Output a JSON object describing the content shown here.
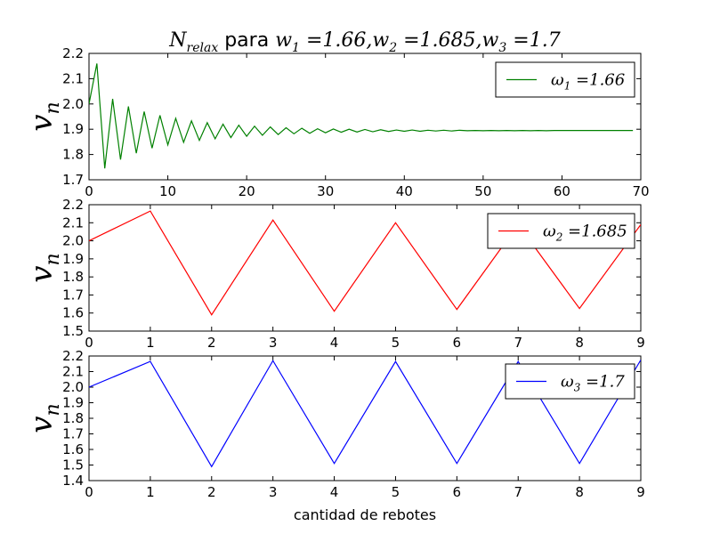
{
  "title_parts": {
    "n": "N",
    "n_sub": "relax",
    "para": " para ",
    "w1": "w",
    "w1_sub": "1",
    "w1_val": " =1.66,",
    "w2": "w",
    "w2_sub": "2",
    "w2_val": " =1.685,",
    "w3": "w",
    "w3_sub": "3",
    "w3_val": " =1.7"
  },
  "xlabel": "cantidad de rebotes",
  "chart_data": [
    {
      "type": "line",
      "ylabel": "v",
      "ylabel_sub": "n",
      "xlim": [
        0,
        70
      ],
      "ylim": [
        1.7,
        2.2
      ],
      "xticks": [
        "0",
        "10",
        "20",
        "30",
        "40",
        "50",
        "60",
        "70"
      ],
      "yticks": [
        "1.7",
        "1.8",
        "1.9",
        "2.0",
        "2.1",
        "2.2"
      ],
      "legend_position": "top-right",
      "series": [
        {
          "name": "ω",
          "name_sub": "1",
          "name_val": " =1.66",
          "color": "#008000",
          "x": [
            0,
            1,
            2,
            3,
            4,
            5,
            6,
            7,
            8,
            9,
            10,
            11,
            12,
            13,
            14,
            15,
            16,
            17,
            18,
            19,
            20,
            21,
            22,
            23,
            24,
            25,
            26,
            27,
            28,
            29,
            30,
            31,
            32,
            33,
            34,
            35,
            36,
            37,
            38,
            39,
            40,
            41,
            42,
            43,
            44,
            45,
            46,
            47,
            48,
            49,
            50,
            51,
            52,
            53,
            54,
            55,
            56,
            57,
            58,
            59,
            60,
            61,
            62,
            63,
            64,
            65,
            66,
            67,
            68,
            69
          ],
          "y": [
            2.0,
            2.16,
            1.745,
            2.02,
            1.78,
            1.99,
            1.805,
            1.97,
            1.825,
            1.955,
            1.838,
            1.943,
            1.848,
            1.933,
            1.856,
            1.926,
            1.862,
            1.92,
            1.867,
            1.916,
            1.872,
            1.912,
            1.876,
            1.909,
            1.879,
            1.906,
            1.882,
            1.904,
            1.884,
            1.902,
            1.886,
            1.901,
            1.888,
            1.9,
            1.889,
            1.899,
            1.89,
            1.898,
            1.891,
            1.897,
            1.892,
            1.897,
            1.892,
            1.896,
            1.893,
            1.896,
            1.893,
            1.896,
            1.894,
            1.895,
            1.894,
            1.895,
            1.894,
            1.895,
            1.894,
            1.895,
            1.894,
            1.895,
            1.894,
            1.895,
            1.895,
            1.895,
            1.895,
            1.895,
            1.895,
            1.895,
            1.895,
            1.895,
            1.895,
            1.895
          ]
        }
      ]
    },
    {
      "type": "line",
      "ylabel": "v",
      "ylabel_sub": "n",
      "xlim": [
        0,
        9
      ],
      "ylim": [
        1.5,
        2.2
      ],
      "xticks": [
        "0",
        "1",
        "2",
        "3",
        "4",
        "5",
        "6",
        "7",
        "8",
        "9"
      ],
      "yticks": [
        "1.5",
        "1.6",
        "1.7",
        "1.8",
        "1.9",
        "2.0",
        "2.1",
        "2.2"
      ],
      "legend_position": "top-right",
      "series": [
        {
          "name": "ω",
          "name_sub": "2",
          "name_val": " =1.685",
          "color": "#ff0000",
          "x": [
            0,
            1,
            2,
            3,
            4,
            5,
            6,
            7,
            8,
            9
          ],
          "y": [
            2.0,
            2.165,
            1.59,
            2.115,
            1.61,
            2.1,
            1.62,
            2.09,
            1.625,
            2.09
          ]
        }
      ]
    },
    {
      "type": "line",
      "ylabel": "v",
      "ylabel_sub": "n",
      "xlim": [
        0,
        9
      ],
      "ylim": [
        1.4,
        2.2
      ],
      "xticks": [
        "0",
        "1",
        "2",
        "3",
        "4",
        "5",
        "6",
        "7",
        "8",
        "9"
      ],
      "yticks": [
        "1.4",
        "1.5",
        "1.6",
        "1.7",
        "1.8",
        "1.9",
        "2.0",
        "2.1",
        "2.2"
      ],
      "legend_position": "top-right",
      "series": [
        {
          "name": "ω",
          "name_sub": "3",
          "name_val": " =1.7",
          "color": "#0000ff",
          "x": [
            0,
            1,
            2,
            3,
            4,
            5,
            6,
            7,
            8,
            9
          ],
          "y": [
            2.0,
            2.165,
            1.49,
            2.17,
            1.51,
            2.165,
            1.51,
            2.165,
            1.51,
            2.175
          ]
        }
      ]
    }
  ]
}
